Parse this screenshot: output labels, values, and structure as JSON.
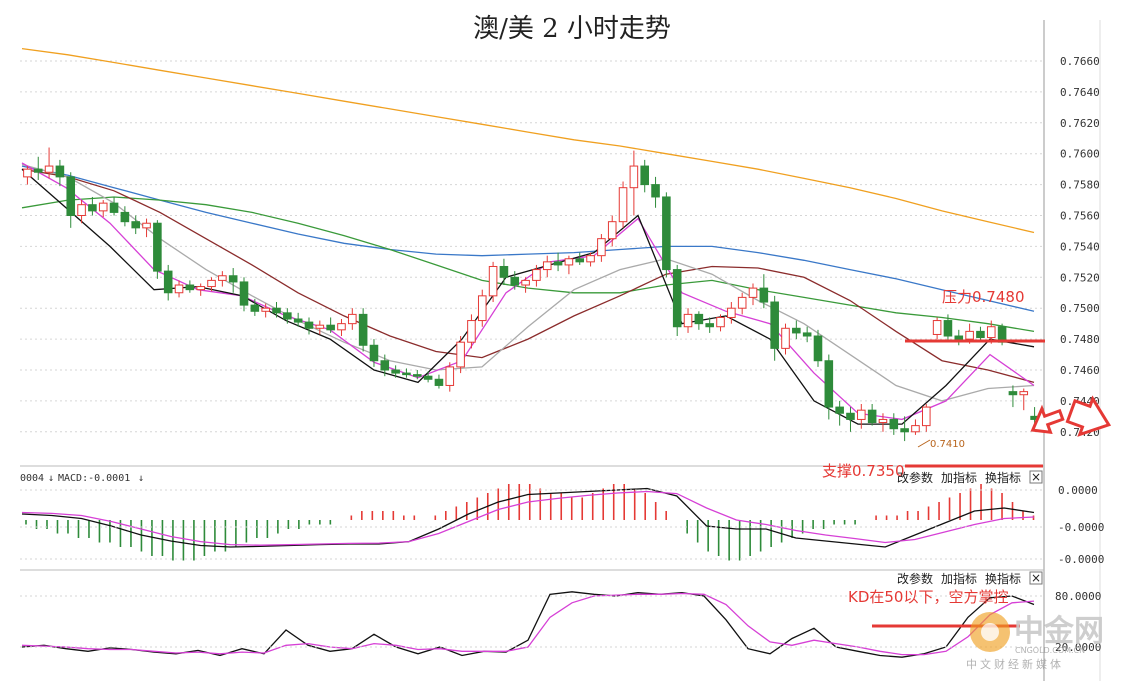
{
  "chart_data": [
    {
      "type": "candlestick",
      "title": "澳/美 2 小时走势",
      "ylim": [
        0.741,
        0.7675
      ],
      "yticks": [
        "0.7660",
        "0.7640",
        "0.7620",
        "0.7600",
        "0.7580",
        "0.7560",
        "0.7540",
        "0.7520",
        "0.7500",
        "0.7480",
        "0.7460",
        "0.7440",
        "0.7420"
      ],
      "candles": [
        [
          0.7585,
          0.7592,
          0.758,
          0.759
        ],
        [
          0.759,
          0.7598,
          0.7583,
          0.7588
        ],
        [
          0.7588,
          0.7604,
          0.7584,
          0.7592
        ],
        [
          0.7592,
          0.7596,
          0.7579,
          0.7585
        ],
        [
          0.7585,
          0.7588,
          0.7552,
          0.756
        ],
        [
          0.756,
          0.757,
          0.7555,
          0.7567
        ],
        [
          0.7567,
          0.7572,
          0.756,
          0.7563
        ],
        [
          0.7563,
          0.757,
          0.7559,
          0.7568
        ],
        [
          0.7568,
          0.7572,
          0.756,
          0.7562
        ],
        [
          0.7562,
          0.7566,
          0.7553,
          0.7556
        ],
        [
          0.7556,
          0.756,
          0.7548,
          0.7552
        ],
        [
          0.7552,
          0.7558,
          0.7546,
          0.7555
        ],
        [
          0.7555,
          0.7557,
          0.7519,
          0.7524
        ],
        [
          0.7524,
          0.7528,
          0.7505,
          0.751
        ],
        [
          0.751,
          0.7518,
          0.7507,
          0.7515
        ],
        [
          0.7515,
          0.7518,
          0.751,
          0.7512
        ],
        [
          0.7512,
          0.7516,
          0.7508,
          0.7514
        ],
        [
          0.7514,
          0.752,
          0.7511,
          0.7518
        ],
        [
          0.7518,
          0.7524,
          0.7514,
          0.7521
        ],
        [
          0.7521,
          0.7526,
          0.751,
          0.7517
        ],
        [
          0.7517,
          0.752,
          0.7498,
          0.7502
        ],
        [
          0.7502,
          0.7506,
          0.7495,
          0.7498
        ],
        [
          0.7498,
          0.7503,
          0.7494,
          0.75
        ],
        [
          0.75,
          0.7504,
          0.7494,
          0.7497
        ],
        [
          0.7497,
          0.75,
          0.749,
          0.7493
        ],
        [
          0.7493,
          0.7497,
          0.7488,
          0.7491
        ],
        [
          0.7491,
          0.7494,
          0.7483,
          0.7487
        ],
        [
          0.7487,
          0.7492,
          0.7483,
          0.7489
        ],
        [
          0.7489,
          0.7494,
          0.7484,
          0.7486
        ],
        [
          0.7486,
          0.7493,
          0.7482,
          0.749
        ],
        [
          0.749,
          0.75,
          0.7486,
          0.7496
        ],
        [
          0.7496,
          0.75,
          0.7472,
          0.7476
        ],
        [
          0.7476,
          0.748,
          0.7462,
          0.7466
        ],
        [
          0.7466,
          0.747,
          0.7456,
          0.746
        ],
        [
          0.746,
          0.7463,
          0.7455,
          0.7458
        ],
        [
          0.7458,
          0.7461,
          0.7455,
          0.7457
        ],
        [
          0.7457,
          0.746,
          0.7454,
          0.7456
        ],
        [
          0.7456,
          0.7459,
          0.7452,
          0.7454
        ],
        [
          0.7454,
          0.7457,
          0.7448,
          0.745
        ],
        [
          0.745,
          0.7465,
          0.7446,
          0.7462
        ],
        [
          0.7462,
          0.7482,
          0.7458,
          0.7478
        ],
        [
          0.7478,
          0.7496,
          0.7474,
          0.7492
        ],
        [
          0.7492,
          0.7512,
          0.7488,
          0.7508
        ],
        [
          0.7508,
          0.753,
          0.7504,
          0.7527
        ],
        [
          0.7527,
          0.7532,
          0.7515,
          0.752
        ],
        [
          0.752,
          0.7524,
          0.7512,
          0.7515
        ],
        [
          0.7515,
          0.752,
          0.751,
          0.7518
        ],
        [
          0.7518,
          0.7528,
          0.7514,
          0.7525
        ],
        [
          0.7525,
          0.7534,
          0.752,
          0.753
        ],
        [
          0.753,
          0.7536,
          0.7524,
          0.7528
        ],
        [
          0.7528,
          0.7534,
          0.7522,
          0.7532
        ],
        [
          0.7532,
          0.7536,
          0.7528,
          0.753
        ],
        [
          0.753,
          0.7536,
          0.7527,
          0.7534
        ],
        [
          0.7534,
          0.7548,
          0.753,
          0.7545
        ],
        [
          0.7545,
          0.756,
          0.754,
          0.7556
        ],
        [
          0.7556,
          0.7582,
          0.7552,
          0.7578
        ],
        [
          0.7578,
          0.7602,
          0.756,
          0.7592
        ],
        [
          0.7592,
          0.7596,
          0.7575,
          0.758
        ],
        [
          0.758,
          0.7585,
          0.7565,
          0.7572
        ],
        [
          0.7572,
          0.7575,
          0.752,
          0.7525
        ],
        [
          0.7525,
          0.7528,
          0.7482,
          0.7488
        ],
        [
          0.7488,
          0.75,
          0.7484,
          0.7496
        ],
        [
          0.7496,
          0.7498,
          0.7486,
          0.749
        ],
        [
          0.749,
          0.7494,
          0.7484,
          0.7488
        ],
        [
          0.7488,
          0.7496,
          0.7485,
          0.7494
        ],
        [
          0.7494,
          0.7504,
          0.749,
          0.75
        ],
        [
          0.75,
          0.751,
          0.7496,
          0.7507
        ],
        [
          0.7507,
          0.7516,
          0.7502,
          0.7513
        ],
        [
          0.7513,
          0.7522,
          0.75,
          0.7504
        ],
        [
          0.7504,
          0.7508,
          0.7466,
          0.7474
        ],
        [
          0.7474,
          0.749,
          0.747,
          0.7487
        ],
        [
          0.7487,
          0.7492,
          0.748,
          0.7484
        ],
        [
          0.7484,
          0.7488,
          0.7478,
          0.7482
        ],
        [
          0.7482,
          0.7486,
          0.7462,
          0.7466
        ],
        [
          0.7466,
          0.747,
          0.7428,
          0.7436
        ],
        [
          0.7436,
          0.744,
          0.7424,
          0.7432
        ],
        [
          0.7432,
          0.7436,
          0.742,
          0.7428
        ],
        [
          0.7428,
          0.7438,
          0.7422,
          0.7434
        ],
        [
          0.7434,
          0.7438,
          0.7424,
          0.7426
        ],
        [
          0.7426,
          0.7432,
          0.742,
          0.7428
        ],
        [
          0.7428,
          0.7432,
          0.7418,
          0.7422
        ],
        [
          0.7422,
          0.743,
          0.7414,
          0.742
        ],
        [
          0.742,
          0.7428,
          0.7418,
          0.7424
        ],
        [
          0.7424,
          0.7438,
          0.742,
          0.7436
        ],
        [
          0.7483,
          0.7494,
          0.748,
          0.7492
        ],
        [
          0.7492,
          0.7496,
          0.7478,
          0.7482
        ],
        [
          0.7482,
          0.7486,
          0.7476,
          0.748
        ],
        [
          0.748,
          0.749,
          0.7477,
          0.7485
        ],
        [
          0.7485,
          0.7488,
          0.7478,
          0.7481
        ],
        [
          0.7481,
          0.7492,
          0.7477,
          0.7488
        ],
        [
          0.7488,
          0.749,
          0.7476,
          0.7478
        ],
        [
          0.7446,
          0.745,
          0.7436,
          0.7444
        ],
        [
          0.7444,
          0.7448,
          0.7434,
          0.7446
        ],
        [
          0.743,
          0.7436,
          0.7422,
          0.7428
        ]
      ],
      "moving_averages": [
        {
          "color": "#f0a020",
          "values": [
            0.7668,
            0.7664,
            0.7659,
            0.7654,
            0.7649,
            0.7644,
            0.7639,
            0.7634,
            0.7629,
            0.7624,
            0.7619,
            0.7614,
            0.7609,
            0.7605,
            0.76,
            0.7595,
            0.759,
            0.7584,
            0.7578,
            0.7571,
            0.7563,
            0.7556,
            0.7549
          ]
        },
        {
          "color": "#3a78c8",
          "values": [
            0.7592,
            0.7586,
            0.7578,
            0.757,
            0.7562,
            0.7555,
            0.7548,
            0.7542,
            0.7538,
            0.7535,
            0.7534,
            0.7535,
            0.7536,
            0.7538,
            0.754,
            0.754,
            0.7536,
            0.7531,
            0.7525,
            0.7519,
            0.7512,
            0.7505,
            0.7498
          ]
        },
        {
          "color": "#3a9a3a",
          "values": [
            0.7565,
            0.757,
            0.7572,
            0.757,
            0.7567,
            0.7562,
            0.7555,
            0.7547,
            0.7538,
            0.7528,
            0.7518,
            0.7513,
            0.751,
            0.751,
            0.7515,
            0.7518,
            0.7512,
            0.7507,
            0.7502,
            0.7497,
            0.7494,
            0.749,
            0.7485
          ]
        },
        {
          "color": "#8b2c2c",
          "values": [
            0.759,
            0.7585,
            0.7576,
            0.7562,
            0.7545,
            0.7528,
            0.751,
            0.7495,
            0.7482,
            0.7472,
            0.7468,
            0.748,
            0.7495,
            0.7508,
            0.7522,
            0.7527,
            0.7526,
            0.752,
            0.7505,
            0.7485,
            0.7466,
            0.746,
            0.7452
          ]
        },
        {
          "color": "#aaaaaa",
          "values": [
            0.7593,
            0.7585,
            0.7568,
            0.7545,
            0.7525,
            0.7508,
            0.7492,
            0.7478,
            0.7466,
            0.746,
            0.7462,
            0.7488,
            0.7512,
            0.7525,
            0.7532,
            0.7522,
            0.7505,
            0.749,
            0.747,
            0.745,
            0.744,
            0.7448,
            0.745
          ]
        },
        {
          "color": "#d640d6",
          "values": [
            0.7594,
            0.7578,
            0.7555,
            0.7525,
            0.7512,
            0.7508,
            0.7495,
            0.7486,
            0.7465,
            0.7455,
            0.7466,
            0.751,
            0.753,
            0.7534,
            0.7558,
            0.751,
            0.7498,
            0.749,
            0.7458,
            0.7432,
            0.7428,
            0.744,
            0.747,
            0.745
          ]
        },
        {
          "color": "#111111",
          "values": [
            0.759,
            0.7565,
            0.754,
            0.7512,
            0.7514,
            0.7508,
            0.7492,
            0.748,
            0.746,
            0.7452,
            0.748,
            0.752,
            0.7528,
            0.7536,
            0.756,
            0.749,
            0.7495,
            0.748,
            0.744,
            0.7425,
            0.7425,
            0.745,
            0.748,
            0.7475
          ]
        }
      ],
      "annotations": [
        {
          "text": "压力0.7480",
          "y": 0.748
        },
        {
          "text": "支撑0.7350"
        },
        {
          "text": "0.7410",
          "y": 0.741
        }
      ]
    },
    {
      "type": "bar",
      "indicator": "MACD",
      "header_prefix": "0004",
      "header": "MACD:-0.0001",
      "yticks": [
        "0.0000",
        "-0.0000",
        "-0.0000"
      ],
      "bars": [
        -1,
        -2,
        -2,
        -3,
        -3,
        -4,
        -4,
        -5,
        -5,
        -6,
        -6,
        -7,
        -8,
        -8,
        -9,
        -9,
        -9,
        -8,
        -7,
        -7,
        -6,
        -5,
        -4,
        -4,
        -3,
        -2,
        -2,
        -1,
        -1,
        -1,
        0,
        1,
        2,
        2,
        2,
        2,
        1,
        1,
        0,
        1,
        2,
        3,
        4,
        5,
        6,
        7,
        8,
        8,
        8,
        7,
        6,
        6,
        5,
        5,
        6,
        7,
        8,
        8,
        7,
        6,
        4,
        2,
        0,
        -3,
        -5,
        -7,
        -8,
        -9,
        -9,
        -8,
        -7,
        -6,
        -5,
        -4,
        -3,
        -2,
        -2,
        -1,
        -1,
        -1,
        0,
        1,
        1,
        1,
        2,
        2,
        3,
        4,
        5,
        6,
        7,
        8,
        7,
        6,
        4,
        2,
        1
      ],
      "lines": [
        {
          "color": "#111111",
          "values": [
            0.2,
            0.15,
            0.05,
            -0.2,
            -0.5,
            -0.7,
            -0.85,
            -0.9,
            -0.88,
            -0.85,
            -0.82,
            -0.8,
            -0.8,
            -0.72,
            -0.3,
            0.2,
            0.6,
            0.85,
            0.9,
            0.95,
            1.0,
            1.05,
            0.8,
            -0.2,
            -0.3,
            -0.3,
            -0.6,
            -0.7,
            -0.8,
            -0.9,
            -0.5,
            -0.1,
            0.3,
            0.4,
            0.25
          ]
        },
        {
          "color": "#d640d6",
          "values": [
            0.25,
            0.22,
            0.15,
            -0.05,
            -0.3,
            -0.55,
            -0.72,
            -0.82,
            -0.84,
            -0.82,
            -0.8,
            -0.78,
            -0.77,
            -0.72,
            -0.45,
            -0.05,
            0.35,
            0.6,
            0.72,
            0.82,
            0.9,
            0.95,
            0.88,
            0.4,
            0.0,
            -0.15,
            -0.35,
            -0.5,
            -0.62,
            -0.75,
            -0.65,
            -0.4,
            -0.15,
            0.05,
            0.1
          ]
        }
      ]
    },
    {
      "type": "line",
      "indicator": "KD",
      "ylim": [
        0,
        100
      ],
      "yticks": [
        "80.0000",
        "20.0000"
      ],
      "lines": [
        {
          "color": "#111111",
          "values": [
            20,
            22,
            18,
            15,
            19,
            17,
            14,
            12,
            16,
            10,
            18,
            12,
            40,
            22,
            15,
            18,
            35,
            20,
            12,
            20,
            10,
            15,
            14,
            28,
            82,
            85,
            82,
            80,
            84,
            82,
            84,
            80,
            52,
            18,
            12,
            30,
            42,
            20,
            15,
            10,
            8,
            12,
            20,
            55,
            78,
            80,
            70
          ]
        },
        {
          "color": "#d640d6",
          "values": [
            22,
            21,
            20,
            18,
            17,
            17,
            15,
            13,
            14,
            12,
            14,
            13,
            22,
            24,
            20,
            18,
            24,
            22,
            17,
            18,
            15,
            15,
            15,
            20,
            55,
            72,
            80,
            81,
            82,
            82,
            83,
            82,
            70,
            45,
            26,
            22,
            28,
            24,
            20,
            15,
            11,
            11,
            15,
            32,
            58,
            72,
            74
          ]
        }
      ],
      "annotation": "KD在50以下，空方掌控"
    }
  ],
  "controls": {
    "macd_params_label": "改参数",
    "macd_add_label": "加指标",
    "macd_switch_label": "换指标",
    "kd_params_label": "改参数",
    "kd_add_label": "加指标",
    "kd_switch_label": "换指标",
    "close_symbol": "×"
  },
  "watermark": {
    "brand": "中金网",
    "site": "CNGOLD.COM.CN",
    "tagline": "中文财经新媒体"
  },
  "colors": {
    "up": "#e53935",
    "down": "#2e8b3a",
    "annotation": "#e53935",
    "arrow": "#e53935",
    "grid": "#d6d6d6"
  }
}
